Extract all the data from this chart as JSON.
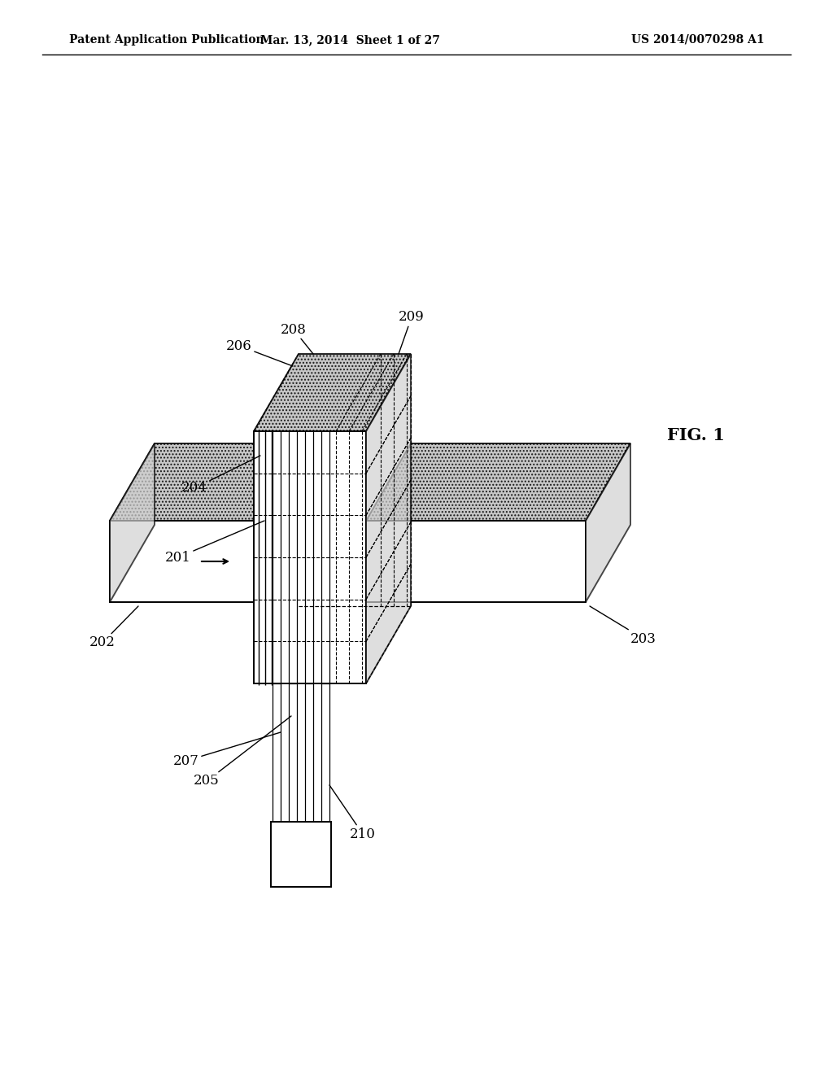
{
  "bg_color": "#ffffff",
  "header_left": "Patent Application Publication",
  "header_mid": "Mar. 13, 2014  Sheet 1 of 27",
  "header_right": "US 2014/0070298 A1",
  "fig_label": "FIG. 1",
  "gray_fill": "#bebebe",
  "light_gray": "#d0d0d0",
  "lw_main": 1.4,
  "lw_thin": 0.9
}
